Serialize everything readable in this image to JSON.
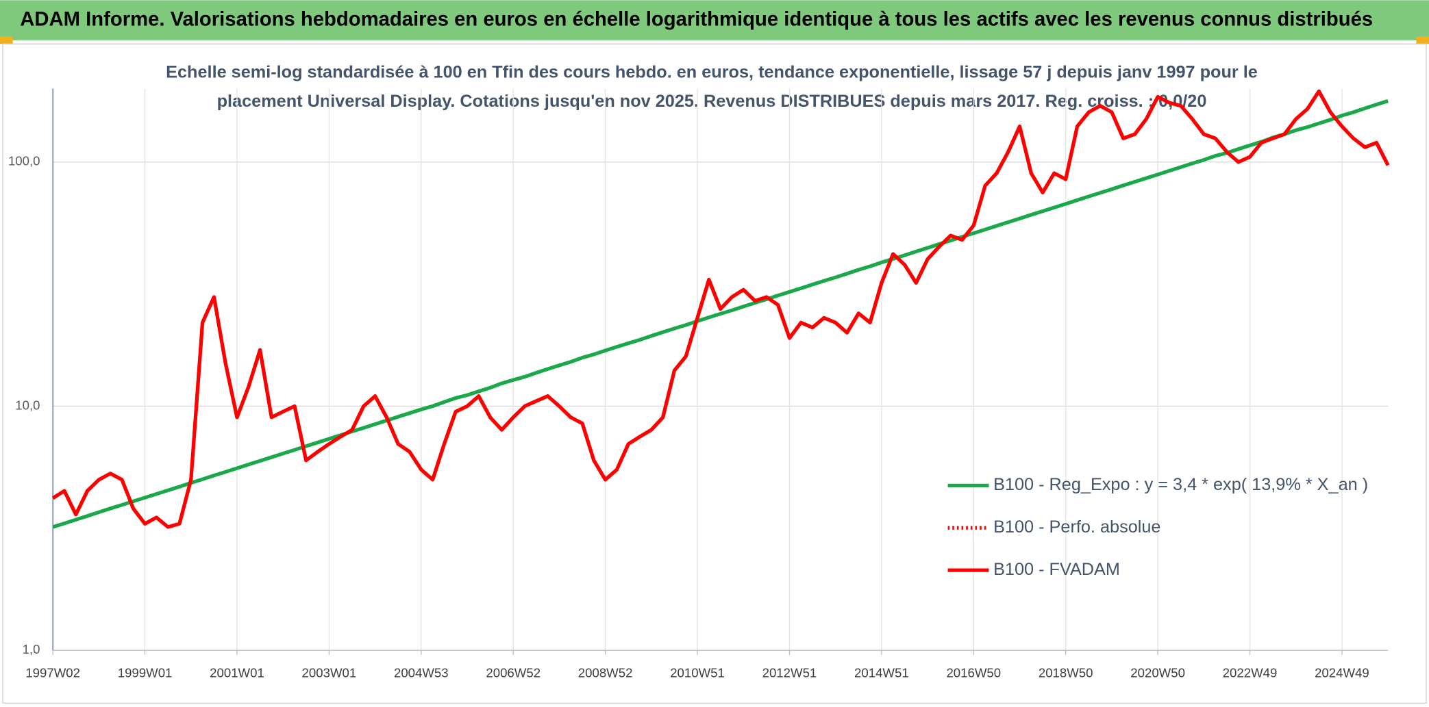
{
  "chart_data": {
    "type": "line",
    "title": "ADAM Informe. Valorisations hebdomadaires en euros en échelle logarithmique identique à tous les actifs avec les revenus connus distribués",
    "subtitle": [
      "Echelle semi-log standardisée à 100 en Tfin des cours hebdo. en euros, tendance exponentielle, lissage 57 j depuis janv 1997 pour le",
      "placement Universal Display. Cotations jusqu'en nov 2025. Revenus DISTRIBUES depuis mars 2017. Reg. croiss. : 0,0/20"
    ],
    "log_scale": true,
    "grid": true,
    "legend": "right",
    "ylim": [
      1,
      200
    ],
    "yticks": [
      {
        "value": 1,
        "label": "1,0"
      },
      {
        "value": 10,
        "label": "10,0"
      },
      {
        "value": 100,
        "label": "100,0"
      }
    ],
    "categories": [
      "1997W02",
      null,
      null,
      null,
      null,
      null,
      null,
      null,
      "1999W01",
      null,
      null,
      null,
      null,
      null,
      null,
      null,
      "2001W01",
      null,
      null,
      null,
      null,
      null,
      null,
      null,
      "2003W01",
      null,
      null,
      null,
      null,
      null,
      null,
      null,
      "2004W53",
      null,
      null,
      null,
      null,
      null,
      null,
      null,
      "2006W52",
      null,
      null,
      null,
      null,
      null,
      null,
      null,
      "2008W52",
      null,
      null,
      null,
      null,
      null,
      null,
      null,
      "2010W51",
      null,
      null,
      null,
      null,
      null,
      null,
      null,
      "2012W51",
      null,
      null,
      null,
      null,
      null,
      null,
      null,
      "2014W51",
      null,
      null,
      null,
      null,
      null,
      null,
      null,
      "2016W50",
      null,
      null,
      null,
      null,
      null,
      null,
      null,
      "2018W50",
      null,
      null,
      null,
      null,
      null,
      null,
      null,
      "2020W50",
      null,
      null,
      null,
      null,
      null,
      null,
      null,
      "2022W49",
      null,
      null,
      null,
      null,
      null,
      null,
      null,
      "2024W49",
      null,
      null,
      null,
      null
    ],
    "series": [
      {
        "name": "B100 - Reg_Expo : y = 3,4 * exp( 13,9% *  X_an )",
        "color": "#1aa84a",
        "style": "solid",
        "values": [
          3.2,
          3.31,
          3.43,
          3.55,
          3.68,
          3.81,
          3.94,
          4.08,
          4.22,
          4.37,
          4.52,
          4.68,
          4.85,
          5.02,
          5.2,
          5.38,
          5.57,
          5.77,
          5.97,
          6.18,
          6.4,
          6.62,
          6.86,
          7.1,
          7.35,
          7.61,
          7.88,
          8.15,
          8.44,
          8.74,
          9.05,
          9.37,
          9.7,
          10.0,
          10.4,
          10.8,
          11.1,
          11.5,
          11.9,
          12.4,
          12.8,
          13.2,
          13.7,
          14.2,
          14.7,
          15.2,
          15.8,
          16.3,
          16.9,
          17.5,
          18.1,
          18.7,
          19.4,
          20.1,
          20.8,
          21.5,
          22.3,
          23.1,
          23.9,
          24.7,
          25.6,
          26.5,
          27.4,
          28.4,
          29.4,
          30.4,
          31.5,
          32.6,
          33.7,
          34.9,
          36.2,
          37.4,
          38.8,
          40.1,
          41.5,
          43.0,
          44.5,
          46.1,
          47.7,
          49.4,
          51.1,
          52.9,
          54.8,
          56.7,
          58.7,
          60.8,
          62.9,
          65.1,
          67.4,
          69.8,
          72.3,
          74.8,
          77.4,
          80.2,
          83.0,
          85.9,
          88.9,
          92.1,
          95.3,
          98.7,
          102,
          106,
          109,
          113,
          117,
          121,
          126,
          130,
          135,
          139,
          144,
          149,
          155,
          160,
          166,
          172,
          178
        ]
      },
      {
        "name": "B100 - Perfo. absolue",
        "color": "#ff0000",
        "style": "dotted",
        "values": [
          null,
          null,
          null,
          null,
          null,
          null,
          null,
          null,
          null,
          null,
          null,
          null,
          null,
          null,
          null,
          null,
          null,
          null,
          null,
          null,
          null,
          null,
          null,
          null,
          null,
          null,
          null,
          null,
          null,
          null,
          null,
          null,
          null,
          null,
          null,
          null,
          null,
          null,
          null,
          null,
          null,
          null,
          null,
          null,
          null,
          null,
          null,
          null,
          null,
          null,
          null,
          null,
          null,
          null,
          null,
          null,
          null,
          null,
          null,
          null,
          null,
          null,
          null,
          null,
          null,
          null,
          null,
          null,
          null,
          null,
          null,
          null,
          null,
          null,
          null,
          null,
          null,
          null,
          null,
          null,
          null,
          null,
          null,
          null,
          null,
          null,
          null,
          null,
          null,
          null,
          null,
          null,
          null,
          null,
          null,
          null,
          null,
          null,
          null,
          null,
          null,
          null,
          null,
          null,
          null,
          null,
          null,
          null,
          null,
          null,
          null,
          null,
          null,
          null,
          null,
          null,
          null
        ]
      },
      {
        "name": "B100 - FVADAM",
        "color": "#ff0000",
        "style": "solid",
        "values": [
          4.2,
          4.5,
          3.6,
          4.5,
          5.0,
          5.3,
          5.0,
          3.8,
          3.3,
          3.5,
          3.2,
          3.3,
          5.0,
          22,
          28,
          15,
          9,
          12,
          17,
          9,
          9.5,
          10,
          6,
          6.5,
          7,
          7.5,
          8,
          10,
          11,
          9,
          7,
          6.5,
          5.5,
          5,
          7,
          9.5,
          10,
          11,
          9,
          8,
          9,
          10,
          10.5,
          11,
          10,
          9,
          8.5,
          6,
          5,
          5.5,
          7,
          7.5,
          8,
          9,
          14,
          16,
          23,
          33,
          25,
          28,
          30,
          27,
          28,
          26,
          19,
          22,
          21,
          23,
          22,
          20,
          24,
          22,
          32,
          42,
          38,
          32,
          40,
          45,
          50,
          48,
          55,
          80,
          90,
          110,
          140,
          90,
          75,
          90,
          85,
          140,
          160,
          170,
          160,
          125,
          130,
          150,
          185,
          175,
          170,
          150,
          130,
          125,
          110,
          100,
          105,
          120,
          125,
          130,
          150,
          165,
          195,
          160,
          140,
          125,
          115,
          120,
          97
        ]
      }
    ]
  }
}
